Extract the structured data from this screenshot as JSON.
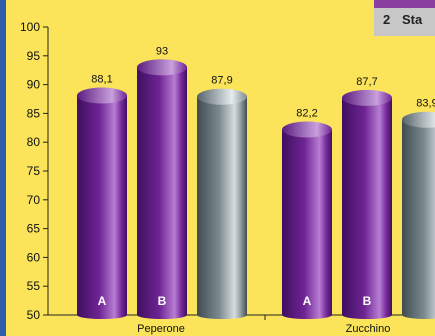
{
  "chart_data": {
    "type": "bar",
    "title": "",
    "xlabel": "",
    "ylabel": "",
    "ylim": [
      50,
      100
    ],
    "yticks": [
      50,
      55,
      60,
      65,
      70,
      75,
      80,
      85,
      90,
      95,
      100
    ],
    "grid": false,
    "groups": [
      {
        "name": "Peperone",
        "bars": [
          {
            "label": "A",
            "value": 88.1,
            "value_text": "88,1",
            "style": "purple"
          },
          {
            "label": "B",
            "value": 93,
            "value_text": "93",
            "style": "purple"
          },
          {
            "label": "",
            "value": 87.9,
            "value_text": "87,9",
            "style": "gray"
          }
        ]
      },
      {
        "name": "Zucchino",
        "bars": [
          {
            "label": "A",
            "value": 82.2,
            "value_text": "82,2",
            "style": "purple"
          },
          {
            "label": "B",
            "value": 87.7,
            "value_text": "87,7",
            "style": "purple"
          },
          {
            "label": "",
            "value": 83.9,
            "value_text": "83,9",
            "style": "gray"
          }
        ]
      }
    ],
    "colors": {
      "purple_dark": "#3e1060",
      "purple_mid": "#6f2494",
      "purple_light": "#b77ed3",
      "gray_dark": "#3f4b50",
      "gray_mid": "#7d8b90",
      "gray_light": "#d6dde0",
      "background": "#fbe45a"
    }
  },
  "legend": {
    "number": "2",
    "label": "Sta"
  }
}
